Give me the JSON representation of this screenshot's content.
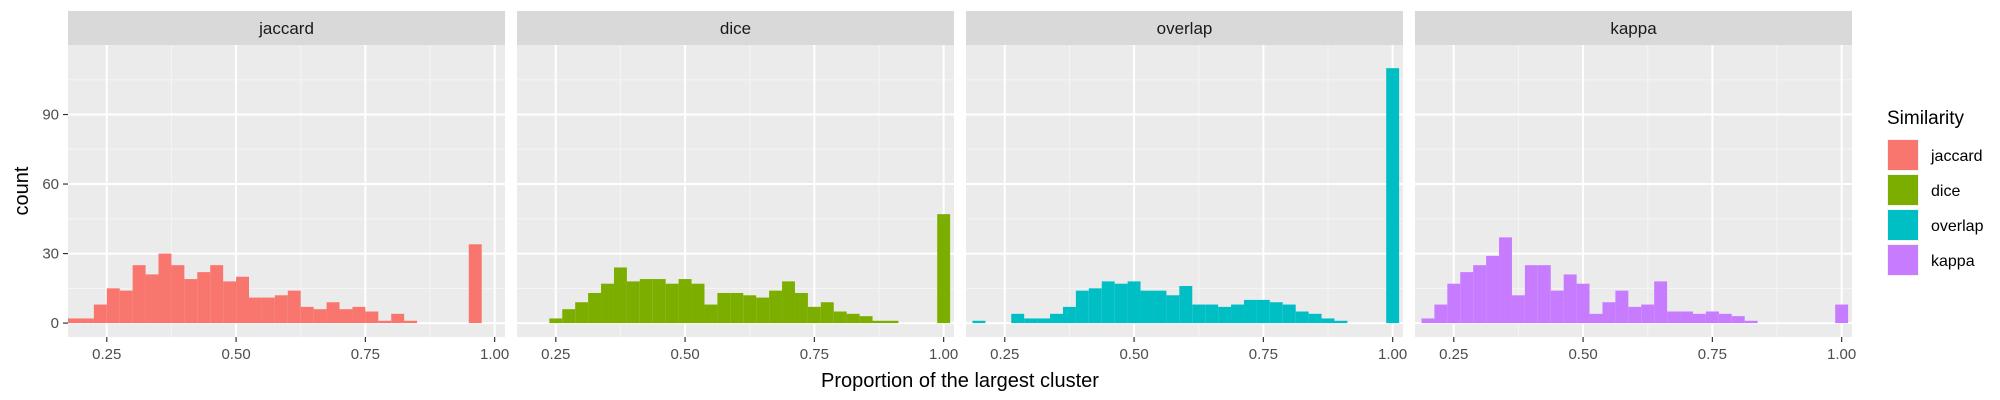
{
  "chart_data": {
    "type": "bar",
    "subtype": "faceted-histogram",
    "xlabel": "Proportion of the largest cluster",
    "ylabel": "count",
    "xlim": [
      0.175,
      1.02
    ],
    "ylim": [
      -6,
      120
    ],
    "x_ticks": [
      0.25,
      0.5,
      0.75,
      1.0
    ],
    "x_tick_labels": [
      "0.25",
      "0.50",
      "0.75",
      "1.00"
    ],
    "y_ticks": [
      0,
      30,
      60,
      90
    ],
    "y_tick_labels": [
      "0",
      "30",
      "60",
      "90"
    ],
    "bin_width": 0.025,
    "grid": true,
    "legend": {
      "title": "Similarity",
      "position": "right",
      "entries": [
        {
          "label": "jaccard",
          "color": "#F8766D"
        },
        {
          "label": "dice",
          "color": "#7CAE00"
        },
        {
          "label": "overlap",
          "color": "#00BFC4"
        },
        {
          "label": "kappa",
          "color": "#C77CFF"
        }
      ]
    },
    "panels": [
      {
        "name": "jaccard",
        "color": "#F8766D",
        "bins": [
          [
            0.175,
            2
          ],
          [
            0.2,
            2
          ],
          [
            0.225,
            8
          ],
          [
            0.25,
            15
          ],
          [
            0.275,
            14
          ],
          [
            0.3,
            25
          ],
          [
            0.325,
            21
          ],
          [
            0.35,
            30
          ],
          [
            0.375,
            25
          ],
          [
            0.4,
            19
          ],
          [
            0.425,
            22
          ],
          [
            0.45,
            25
          ],
          [
            0.475,
            18
          ],
          [
            0.5,
            20
          ],
          [
            0.525,
            11
          ],
          [
            0.55,
            11
          ],
          [
            0.575,
            12
          ],
          [
            0.6,
            14
          ],
          [
            0.625,
            7
          ],
          [
            0.65,
            6
          ],
          [
            0.675,
            9
          ],
          [
            0.7,
            6
          ],
          [
            0.725,
            7
          ],
          [
            0.75,
            5
          ],
          [
            0.775,
            1
          ],
          [
            0.8,
            4
          ],
          [
            0.825,
            1
          ],
          [
            0.95,
            34
          ]
        ]
      },
      {
        "name": "dice",
        "color": "#7CAE00",
        "bins": [
          [
            0.2375,
            2
          ],
          [
            0.2625,
            6
          ],
          [
            0.2875,
            9
          ],
          [
            0.3125,
            13
          ],
          [
            0.3375,
            17
          ],
          [
            0.3625,
            24
          ],
          [
            0.3875,
            18
          ],
          [
            0.4125,
            19
          ],
          [
            0.4375,
            19
          ],
          [
            0.4625,
            17
          ],
          [
            0.4875,
            19
          ],
          [
            0.5125,
            17
          ],
          [
            0.5375,
            8
          ],
          [
            0.5625,
            13
          ],
          [
            0.5875,
            13
          ],
          [
            0.6125,
            12
          ],
          [
            0.6375,
            11
          ],
          [
            0.6625,
            14
          ],
          [
            0.6875,
            18
          ],
          [
            0.7125,
            13
          ],
          [
            0.7375,
            7
          ],
          [
            0.7625,
            9
          ],
          [
            0.7875,
            5
          ],
          [
            0.8125,
            4
          ],
          [
            0.8375,
            3
          ],
          [
            0.8625,
            1
          ],
          [
            0.8875,
            1
          ],
          [
            0.9875,
            47
          ]
        ]
      },
      {
        "name": "overlap",
        "color": "#00BFC4",
        "bins": [
          [
            0.1875,
            1
          ],
          [
            0.2625,
            4
          ],
          [
            0.2875,
            2
          ],
          [
            0.3125,
            2
          ],
          [
            0.3375,
            4
          ],
          [
            0.3625,
            7
          ],
          [
            0.3875,
            14
          ],
          [
            0.4125,
            15
          ],
          [
            0.4375,
            18
          ],
          [
            0.4625,
            17
          ],
          [
            0.4875,
            18
          ],
          [
            0.5125,
            14
          ],
          [
            0.5375,
            14
          ],
          [
            0.5625,
            12
          ],
          [
            0.5875,
            16
          ],
          [
            0.6125,
            8
          ],
          [
            0.6375,
            8
          ],
          [
            0.6625,
            7
          ],
          [
            0.6875,
            8
          ],
          [
            0.7125,
            10
          ],
          [
            0.7375,
            10
          ],
          [
            0.7625,
            9
          ],
          [
            0.7875,
            8
          ],
          [
            0.8125,
            5
          ],
          [
            0.8375,
            4
          ],
          [
            0.8625,
            2
          ],
          [
            0.8875,
            1
          ],
          [
            0.9875,
            110
          ]
        ]
      },
      {
        "name": "kappa",
        "color": "#C77CFF",
        "bins": [
          [
            0.1875,
            2
          ],
          [
            0.2125,
            8
          ],
          [
            0.2375,
            17
          ],
          [
            0.2625,
            22
          ],
          [
            0.2875,
            25
          ],
          [
            0.3125,
            29
          ],
          [
            0.3375,
            37
          ],
          [
            0.3625,
            12
          ],
          [
            0.3875,
            25
          ],
          [
            0.4125,
            25
          ],
          [
            0.4375,
            14
          ],
          [
            0.4625,
            21
          ],
          [
            0.4875,
            17
          ],
          [
            0.5125,
            4
          ],
          [
            0.5375,
            9
          ],
          [
            0.5625,
            14
          ],
          [
            0.5875,
            7
          ],
          [
            0.6125,
            8
          ],
          [
            0.6375,
            18
          ],
          [
            0.6625,
            5
          ],
          [
            0.6875,
            5
          ],
          [
            0.7125,
            4
          ],
          [
            0.7375,
            5
          ],
          [
            0.7625,
            4
          ],
          [
            0.7875,
            3
          ],
          [
            0.8125,
            1
          ],
          [
            0.9875,
            8
          ]
        ]
      }
    ]
  }
}
